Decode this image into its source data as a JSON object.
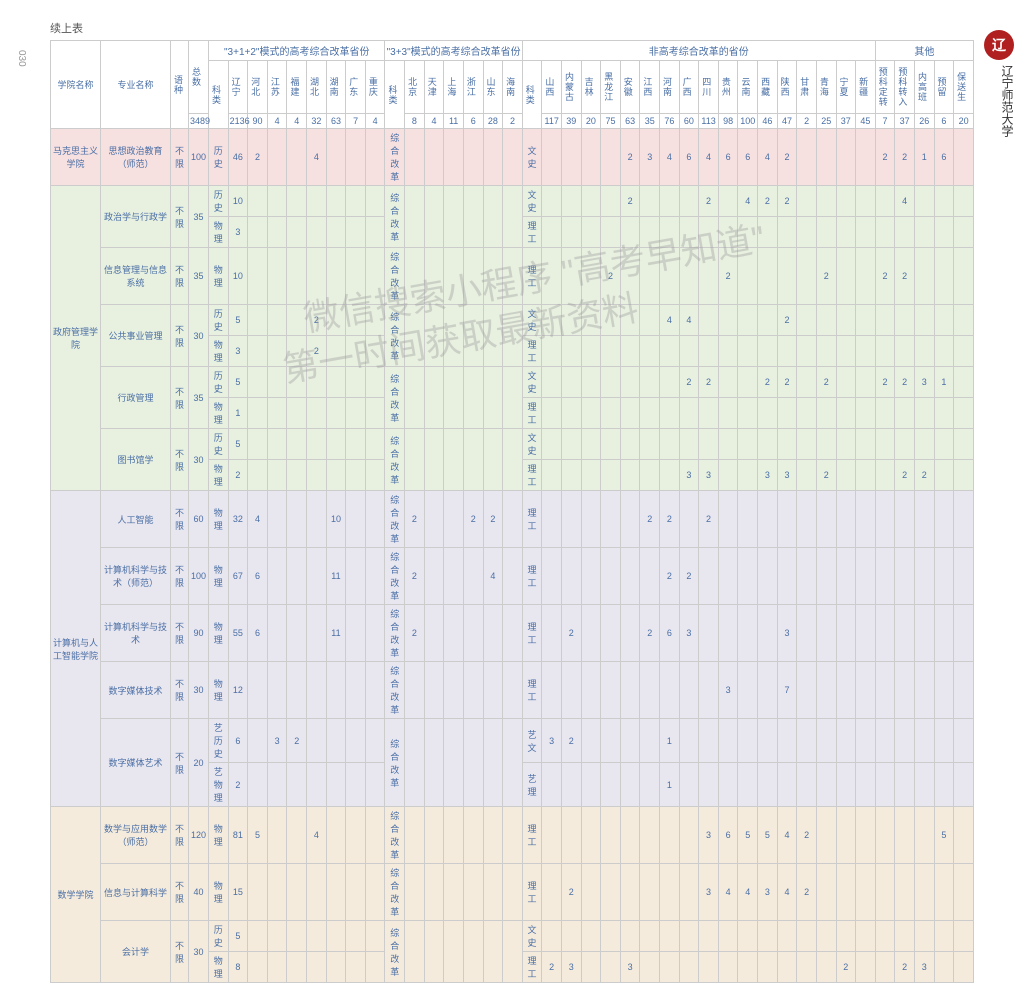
{
  "page_num": "030",
  "logo_text": "辽",
  "uni_name": "辽宁师范大学",
  "caption": "续上表",
  "wm1": "微信搜索小程序 \"高考早知道\"",
  "wm2": "第一时间获取最新资料",
  "h": {
    "college": "学院名称",
    "major": "专业名称",
    "lang": "语种",
    "total": "总数",
    "g1": "\"3+1+2\"模式的高考综合改革省份",
    "g2": "\"3+3\"模式的高考综合改革省份",
    "g3": "非高考综合改革的省份",
    "g4": "其他",
    "subj": "科类",
    "provs1": [
      "辽宁",
      "河北",
      "江苏",
      "福建",
      "湖北",
      "湖南",
      "广东",
      "重庆"
    ],
    "provs2": [
      "北京",
      "天津",
      "上海",
      "浙江",
      "山东",
      "海南"
    ],
    "provs3": [
      "山西",
      "内蒙古",
      "吉林",
      "黑龙江",
      "安徽",
      "江西",
      "河南",
      "广西",
      "四川",
      "贵州",
      "云南",
      "西藏",
      "陕西",
      "甘肃",
      "青海",
      "宁夏",
      "新疆"
    ],
    "provs4": [
      "预科定转",
      "预科转入",
      "内高班",
      "预留",
      "保送生"
    ],
    "totals": {
      "all": "3489",
      "p1": [
        "2136",
        "90",
        "4",
        "4",
        "32",
        "63",
        "7",
        "4"
      ],
      "p2": [
        "8",
        "4",
        "11",
        "6",
        "28",
        "2"
      ],
      "p3": [
        "117",
        "39",
        "20",
        "75",
        "63",
        "35",
        "76",
        "60",
        "113",
        "98",
        "100",
        "46",
        "47",
        "2",
        "25",
        "37",
        "45"
      ],
      "p4": [
        "7",
        "37",
        "26",
        "6",
        "20"
      ]
    }
  },
  "rows": [
    {
      "class": "red-row",
      "college": "马克思主义学院",
      "rs": 1,
      "major": "思想政治教育（师范）",
      "lang": "不限",
      "total": "100",
      "sub1": "历史",
      "p1": [
        "46",
        "2",
        "",
        "",
        "4",
        "",
        "",
        ""
      ],
      "sub2": "综合改革",
      "p2": [
        "",
        "",
        "",
        "",
        "",
        ""
      ],
      "sub3": "文史",
      "p3": [
        "",
        "",
        "",
        "",
        "2",
        "3",
        "4",
        "6",
        "4",
        "6",
        "6",
        "4",
        "2",
        "",
        "",
        "",
        ""
      ],
      "p4": [
        "2",
        "2",
        "1",
        "6",
        ""
      ]
    },
    {
      "class": "green-row",
      "college": "政府管理学院",
      "rs": 9,
      "major": "政治学与行政学",
      "lang": "不限",
      "total": "35",
      "sub1": "历史",
      "p1": [
        "10",
        "",
        "",
        "",
        "",
        "",
        "",
        ""
      ],
      "sub2": "综合改革",
      "p2": [
        "",
        "",
        "",
        "",
        "",
        ""
      ],
      "sub3": "文史",
      "p3": [
        "",
        "",
        "",
        "",
        "2",
        "",
        "",
        "",
        "2",
        "",
        "4",
        "2",
        "2",
        "",
        "",
        "",
        ""
      ],
      "p4": [
        "",
        "4",
        "",
        "",
        ""
      ]
    },
    {
      "class": "green-row",
      "sub1": "物理",
      "p1": [
        "3",
        "",
        "",
        "",
        "",
        "",
        "",
        ""
      ],
      "sub3": "理工",
      "p3": [
        "",
        "",
        "",
        "",
        "",
        "",
        "",
        "",
        "",
        "",
        "",
        "",
        "",
        "",
        "",
        "",
        ""
      ],
      "p4": [
        "",
        "",
        "",
        "",
        ""
      ]
    },
    {
      "class": "green-row",
      "major": "信息管理与信息系统",
      "lang": "不限",
      "total": "35",
      "sub1": "物理",
      "p1": [
        "10",
        "",
        "",
        "",
        "",
        "",
        "",
        ""
      ],
      "sub2": "综合改革",
      "p2": [
        "",
        "",
        "",
        "",
        "",
        ""
      ],
      "sub3": "理工",
      "p3": [
        "",
        "",
        "",
        "2",
        "",
        "",
        "",
        "",
        "",
        "2",
        "",
        "",
        "",
        "",
        "2",
        "",
        ""
      ],
      "p4": [
        "2",
        "2",
        "",
        "",
        ""
      ]
    },
    {
      "class": "green-row",
      "major": "公共事业管理",
      "lang": "不限",
      "total": "30",
      "sub1": "历史",
      "p1": [
        "5",
        "",
        "",
        "",
        "2",
        "",
        "",
        ""
      ],
      "sub2": "综合改革",
      "p2": [
        "",
        "",
        "",
        "",
        "",
        ""
      ],
      "sub3": "文史",
      "p3": [
        "",
        "",
        "",
        "",
        "",
        "",
        "4",
        "4",
        "",
        "",
        "",
        "",
        "2",
        "",
        "",
        "",
        ""
      ],
      "p4": [
        "",
        "",
        "",
        "",
        ""
      ]
    },
    {
      "class": "green-row",
      "sub1": "物理",
      "p1": [
        "3",
        "",
        "",
        "",
        "2",
        "",
        "",
        ""
      ],
      "sub3": "理工",
      "p3": [
        "",
        "",
        "",
        "",
        "",
        "",
        "",
        "",
        "",
        "",
        "",
        "",
        "",
        "",
        "",
        "",
        ""
      ],
      "p4": [
        "",
        "",
        "",
        "",
        ""
      ]
    },
    {
      "class": "green-row",
      "major": "行政管理",
      "lang": "不限",
      "total": "35",
      "sub1": "历史",
      "p1": [
        "5",
        "",
        "",
        "",
        "",
        "",
        "",
        ""
      ],
      "sub2": "综合改革",
      "p2": [
        "",
        "",
        "",
        "",
        "",
        ""
      ],
      "sub3": "文史",
      "p3": [
        "",
        "",
        "",
        "",
        "",
        "",
        "",
        "2",
        "2",
        "",
        "",
        "2",
        "2",
        "",
        "2",
        "",
        ""
      ],
      "p4": [
        "2",
        "2",
        "3",
        "1",
        ""
      ]
    },
    {
      "class": "green-row",
      "sub1": "物理",
      "p1": [
        "1",
        "",
        "",
        "",
        "",
        "",
        "",
        ""
      ],
      "sub3": "理工",
      "p3": [
        "",
        "",
        "",
        "",
        "",
        "",
        "",
        "",
        "",
        "",
        "",
        "",
        "",
        "",
        "",
        "",
        ""
      ],
      "p4": [
        "",
        "",
        "",
        "",
        ""
      ]
    },
    {
      "class": "green-row",
      "major": "图书馆学",
      "lang": "不限",
      "total": "30",
      "sub1": "历史",
      "p1": [
        "5",
        "",
        "",
        "",
        "",
        "",
        "",
        ""
      ],
      "sub2": "综合改革",
      "p2": [
        "",
        "",
        "",
        "",
        "",
        ""
      ],
      "sub3": "文史",
      "p3": [
        "",
        "",
        "",
        "",
        "",
        "",
        "",
        "",
        "",
        "",
        "",
        "",
        "",
        "",
        "",
        "",
        ""
      ],
      "p4": [
        "",
        "",
        "",
        "",
        ""
      ]
    },
    {
      "class": "green-row",
      "sub1": "物理",
      "p1": [
        "2",
        "",
        "",
        "",
        "",
        "",
        "",
        ""
      ],
      "sub3": "理工",
      "p3": [
        "",
        "",
        "",
        "",
        "",
        "",
        "",
        "3",
        "3",
        "",
        "",
        "3",
        "3",
        "",
        "2",
        "",
        ""
      ],
      "p4": [
        "",
        "2",
        "2",
        "",
        ""
      ]
    },
    {
      "class": "purple-row",
      "college": "计算机与人工智能学院",
      "rs": 6,
      "major": "人工智能",
      "lang": "不限",
      "total": "60",
      "sub1": "物理",
      "p1": [
        "32",
        "4",
        "",
        "",
        "",
        "10",
        "",
        ""
      ],
      "sub2": "综合改革",
      "p2": [
        "2",
        "",
        "",
        "2",
        "2",
        ""
      ],
      "sub3": "理工",
      "p3": [
        "",
        "",
        "",
        "",
        "",
        "2",
        "2",
        "",
        "2",
        "",
        "",
        "",
        "",
        "",
        "",
        "",
        ""
      ],
      "p4": [
        "",
        "",
        "",
        "",
        ""
      ]
    },
    {
      "class": "purple-row",
      "major": "计算机科学与技术（师范）",
      "lang": "不限",
      "total": "100",
      "sub1": "物理",
      "p1": [
        "67",
        "6",
        "",
        "",
        "",
        "11",
        "",
        ""
      ],
      "sub2": "综合改革",
      "p2": [
        "2",
        "",
        "",
        "",
        "4",
        ""
      ],
      "sub3": "理工",
      "p3": [
        "",
        "",
        "",
        "",
        "",
        "",
        "2",
        "2",
        "",
        "",
        "",
        "",
        "",
        "",
        "",
        "",
        ""
      ],
      "p4": [
        "",
        "",
        "",
        "",
        ""
      ]
    },
    {
      "class": "purple-row",
      "major": "计算机科学与技术",
      "lang": "不限",
      "total": "90",
      "sub1": "物理",
      "p1": [
        "55",
        "6",
        "",
        "",
        "",
        "11",
        "",
        ""
      ],
      "sub2": "综合改革",
      "p2": [
        "2",
        "",
        "",
        "",
        "",
        ""
      ],
      "sub3": "理工",
      "p3": [
        "",
        "2",
        "",
        "",
        "",
        "2",
        "6",
        "3",
        "",
        "",
        "",
        "",
        "3",
        "",
        "",
        "",
        ""
      ],
      "p4": [
        "",
        "",
        "",
        "",
        ""
      ]
    },
    {
      "class": "purple-row",
      "major": "数字媒体技术",
      "lang": "不限",
      "total": "30",
      "sub1": "物理",
      "p1": [
        "12",
        "",
        "",
        "",
        "",
        "",
        "",
        ""
      ],
      "sub2": "综合改革",
      "p2": [
        "",
        "",
        "",
        "",
        "",
        ""
      ],
      "sub3": "理工",
      "p3": [
        "",
        "",
        "",
        "",
        "",
        "",
        "",
        "",
        "",
        "3",
        "",
        "",
        "7",
        "",
        "",
        "",
        ""
      ],
      "p4": [
        "",
        "",
        "",
        "",
        ""
      ]
    },
    {
      "class": "purple-row",
      "major": "数字媒体艺术",
      "lang": "不限",
      "total": "20",
      "sub1": "艺历史",
      "p1": [
        "6",
        "",
        "3",
        "2",
        "",
        "",
        "",
        ""
      ],
      "sub2": "综合改革",
      "p2": [
        "",
        "",
        "",
        "",
        "",
        ""
      ],
      "sub3": "艺文",
      "p3": [
        "3",
        "2",
        "",
        "",
        "",
        "",
        "1",
        "",
        "",
        "",
        "",
        "",
        "",
        "",
        "",
        "",
        ""
      ],
      "p4": [
        "",
        "",
        "",
        "",
        ""
      ]
    },
    {
      "class": "purple-row",
      "sub1": "艺物理",
      "p1": [
        "2",
        "",
        "",
        "",
        "",
        "",
        "",
        ""
      ],
      "sub3": "艺理",
      "p3": [
        "",
        "",
        "",
        "",
        "",
        "",
        "1",
        "",
        "",
        "",
        "",
        "",
        "",
        "",
        "",
        "",
        ""
      ],
      "p4": [
        "",
        "",
        "",
        "",
        ""
      ]
    },
    {
      "class": "orange-row",
      "college": "数学学院",
      "rs": 4,
      "major": "数学与应用数学（师范）",
      "lang": "不限",
      "total": "120",
      "sub1": "物理",
      "p1": [
        "81",
        "5",
        "",
        "",
        "4",
        "",
        "",
        ""
      ],
      "sub2": "综合改革",
      "p2": [
        "",
        "",
        "",
        "",
        "",
        ""
      ],
      "sub3": "理工",
      "p3": [
        "",
        "",
        "",
        "",
        "",
        "",
        "",
        "",
        "3",
        "6",
        "5",
        "5",
        "4",
        "2",
        "",
        "",
        ""
      ],
      "p4": [
        "",
        "",
        "",
        "5",
        ""
      ]
    },
    {
      "class": "orange-row",
      "major": "信息与计算科学",
      "lang": "不限",
      "total": "40",
      "sub1": "物理",
      "p1": [
        "15",
        "",
        "",
        "",
        "",
        "",
        "",
        ""
      ],
      "sub2": "综合改革",
      "p2": [
        "",
        "",
        "",
        "",
        "",
        ""
      ],
      "sub3": "理工",
      "p3": [
        "",
        "2",
        "",
        "",
        "",
        "",
        "",
        "",
        "3",
        "4",
        "4",
        "3",
        "4",
        "2",
        "",
        "",
        ""
      ],
      "p4": [
        "",
        "",
        "",
        "",
        ""
      ]
    },
    {
      "class": "orange-row",
      "major": "会计学",
      "lang": "不限",
      "total": "30",
      "sub1": "历史",
      "p1": [
        "5",
        "",
        "",
        "",
        "",
        "",
        "",
        ""
      ],
      "sub2": "综合改革",
      "p2": [
        "",
        "",
        "",
        "",
        "",
        ""
      ],
      "sub3": "文史",
      "p3": [
        "",
        "",
        "",
        "",
        "",
        "",
        "",
        "",
        "",
        "",
        "",
        "",
        "",
        "",
        "",
        "",
        ""
      ],
      "p4": [
        "",
        "",
        "",
        "",
        ""
      ]
    },
    {
      "class": "orange-row",
      "sub1": "物理",
      "p1": [
        "8",
        "",
        "",
        "",
        "",
        "",
        "",
        ""
      ],
      "sub3": "理工",
      "p3": [
        "2",
        "3",
        "",
        "",
        "3",
        "",
        "",
        "",
        "",
        "",
        "",
        "",
        "",
        "",
        "",
        "2",
        ""
      ],
      "p4": [
        "",
        "2",
        "3",
        "",
        ""
      ]
    }
  ]
}
